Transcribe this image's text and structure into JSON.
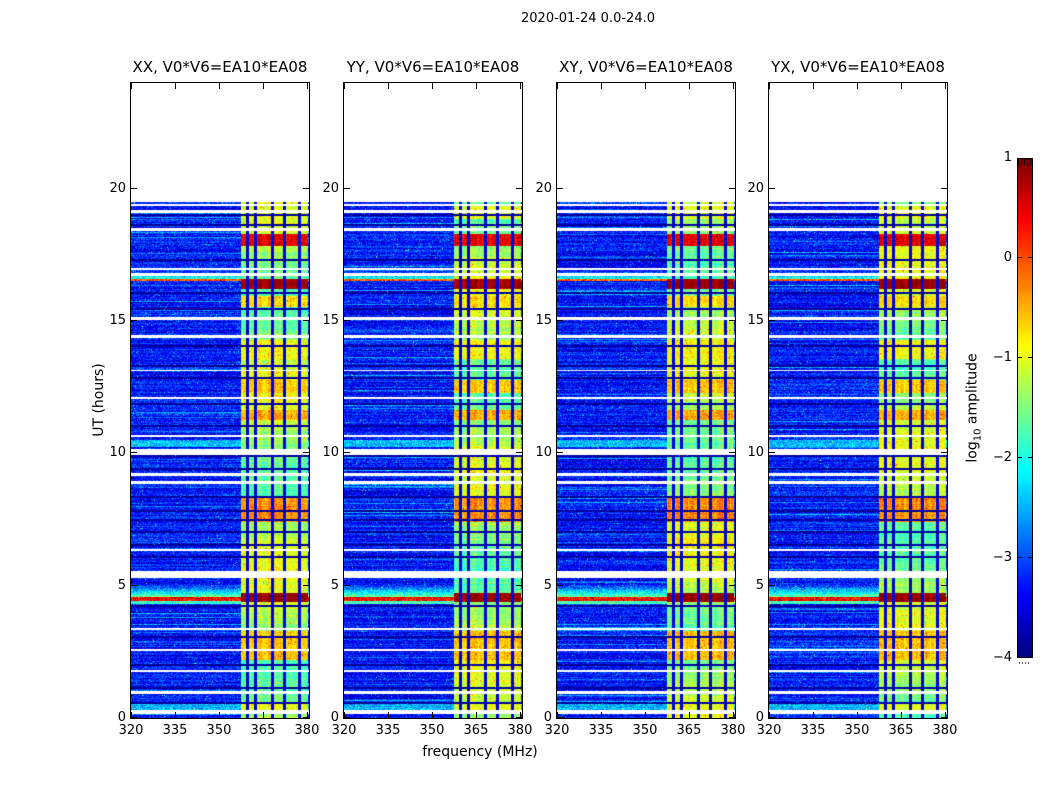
{
  "figure": {
    "title": "2020-01-24 0.0-24.0",
    "background_color": "#ffffff",
    "axis_color": "#000000"
  },
  "chart_data": {
    "type": "heatmap",
    "title": "2020-01-24 0.0-24.0",
    "xlabel": "frequency (MHz)",
    "ylabel": "UT (hours)",
    "x_range_mhz": [
      320,
      380.7
    ],
    "x_ticks": [
      320,
      335,
      350,
      365,
      380
    ],
    "y_range_hours": [
      0,
      24
    ],
    "y_ticks": [
      0,
      5,
      10,
      15,
      20
    ],
    "grid": false,
    "panels": [
      {
        "title": "XX, V0*V6=EA10*EA08",
        "seed": 101
      },
      {
        "title": "YY, V0*V6=EA10*EA08",
        "seed": 202
      },
      {
        "title": "XY, V0*V6=EA10*EA08",
        "seed": 303
      },
      {
        "title": "YX, V0*V6=EA10*EA08",
        "seed": 404
      }
    ],
    "colorbar": {
      "label": "log10 amplitude",
      "label_prefix": "log",
      "label_sub": "10",
      "label_suffix": " amplitude",
      "ticks": [
        1,
        0,
        -1,
        -2,
        -3,
        -4
      ],
      "range": [
        -4,
        1
      ],
      "colormap": "jet",
      "position": "right"
    },
    "spectrogram": {
      "data_hours": [
        0,
        19.5
      ],
      "background_level": -3.3,
      "band": {
        "freq_start": 357.6,
        "freq_end": 380.2,
        "level": -1.35
      },
      "band_channel_lines_mhz": [
        359.6,
        362.6,
        368.1,
        372.4,
        377.6
      ],
      "blank_time_gaps_hours": [
        [
          0.14,
          0.3
        ],
        [
          0.92,
          1.02
        ],
        [
          1.72,
          1.82
        ],
        [
          2.52,
          2.62
        ],
        [
          3.32,
          3.42
        ],
        [
          5.3,
          5.56
        ],
        [
          6.32,
          6.4
        ],
        [
          8.85,
          8.95
        ],
        [
          9.16,
          9.26
        ],
        [
          9.95,
          10.18
        ],
        [
          10.62,
          10.68
        ],
        [
          12.05,
          12.12
        ],
        [
          13.1,
          13.16
        ],
        [
          14.35,
          14.46
        ],
        [
          15.06,
          15.16
        ],
        [
          16.7,
          16.82
        ],
        [
          16.92,
          17.02
        ],
        [
          18.4,
          18.52
        ],
        [
          19.1,
          19.2
        ],
        [
          19.36,
          19.42
        ]
      ],
      "dark_rows_hours": [
        0.55,
        1.15,
        2.02,
        3.05,
        4.25,
        6.1,
        6.55,
        7.02,
        7.48,
        7.82,
        8.35,
        9.42,
        9.9,
        11.02,
        11.85,
        12.85,
        13.32,
        14.05,
        15.45,
        16.05,
        17.32,
        18.62,
        19.02
      ],
      "events": [
        {
          "hours": [
            0.3,
            0.62
          ],
          "full_level": -2.5,
          "band_level": -1.0
        },
        {
          "hours": [
            2.2,
            3.3
          ],
          "band_level": -0.6
        },
        {
          "hours": [
            4.3,
            4.42
          ],
          "full_level": -1.8
        },
        {
          "hours": [
            4.38,
            4.72
          ],
          "band_level": 0.9
        },
        {
          "hours": [
            4.42,
            4.56
          ],
          "full_level": 0.35
        },
        {
          "hours": [
            4.56,
            5.05
          ],
          "full_level": -1.5,
          "fade": true
        },
        {
          "hours": [
            7.4,
            8.32
          ],
          "band_level": -0.35
        },
        {
          "hours": [
            10.25,
            10.5
          ],
          "full_level": -2.45
        },
        {
          "hours": [
            11.28,
            11.65
          ],
          "band_level": -0.5
        },
        {
          "hours": [
            12.3,
            12.78
          ],
          "band_level": -0.65
        },
        {
          "hours": [
            13.55,
            14.3
          ],
          "band_level": -0.9
        },
        {
          "hours": [
            15.55,
            15.95
          ],
          "band_level": -0.75
        },
        {
          "hours": [
            16.22,
            16.58
          ],
          "band_level": 0.85
        },
        {
          "hours": [
            16.5,
            16.6
          ],
          "full_level": -0.1
        },
        {
          "hours": [
            16.6,
            16.9
          ],
          "full_level": -2.0,
          "fade": true
        },
        {
          "hours": [
            17.85,
            18.28
          ],
          "band_level": 0.45
        },
        {
          "hours": [
            18.85,
            19.35
          ],
          "band_level": -1.0
        }
      ]
    }
  }
}
